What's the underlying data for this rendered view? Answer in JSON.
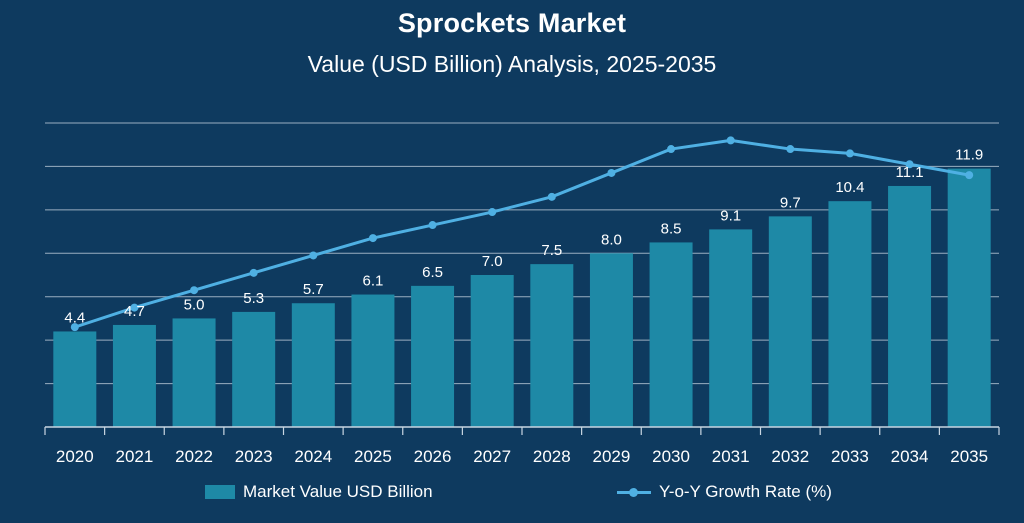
{
  "title": "Sprockets Market",
  "subtitle": "Value (USD Billion) Analysis, 2025-2035",
  "colors": {
    "background": "#0e3a5f",
    "bar": "#1e89a6",
    "line": "#4fb0e3",
    "grid": "#c9d6e2"
  },
  "chart_data": {
    "type": "bar",
    "categories": [
      "2020",
      "2021",
      "2022",
      "2023",
      "2024",
      "2025",
      "2026",
      "2027",
      "2028",
      "2029",
      "2030",
      "2031",
      "2032",
      "2033",
      "2034",
      "2035"
    ],
    "series": [
      {
        "name": "Market Value USD Billion",
        "type": "bar",
        "values": [
          4.4,
          4.7,
          5.0,
          5.3,
          5.7,
          6.1,
          6.5,
          7.0,
          7.5,
          8.0,
          8.5,
          9.1,
          9.7,
          10.4,
          11.1,
          11.9
        ],
        "data_labels": [
          "4.4",
          "4.7",
          "5.0",
          "5.3",
          "5.7",
          "6.1",
          "6.5",
          "7.0",
          "7.5",
          "8.0",
          "8.5",
          "9.1",
          "9.7",
          "10.4",
          "11.1",
          "11.9"
        ]
      },
      {
        "name": "Y-o-Y Growth Rate (%)",
        "type": "line",
        "values": [
          4.6,
          5.5,
          6.3,
          7.1,
          7.9,
          8.7,
          9.3,
          9.9,
          10.6,
          11.7,
          12.8,
          13.2,
          12.8,
          12.6,
          12.1,
          11.6
        ]
      }
    ],
    "ylim": [
      0,
      14
    ],
    "grid": true,
    "legend_position": "bottom"
  }
}
